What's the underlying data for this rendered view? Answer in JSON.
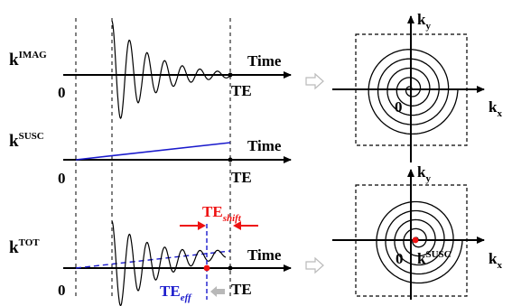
{
  "panel_imag": {
    "k_base": "k",
    "k_sup": "IMAG",
    "time_label": "Time",
    "zero_label": "0",
    "te_label": "TE"
  },
  "panel_susc": {
    "k_base": "k",
    "k_sup": "SUSC",
    "time_label": "Time",
    "zero_label": "0",
    "te_label": "TE"
  },
  "panel_tot": {
    "k_base": "k",
    "k_sup": "TOT",
    "time_label": "Time",
    "zero_label": "0",
    "te_label": "TE",
    "te_shift_base": "TE",
    "te_shift_sub": "shift",
    "te_eff_base": "TE",
    "te_eff_sub": "eff"
  },
  "kspace_top": {
    "ky_base": "k",
    "ky_sub": "y",
    "kx_base": "k",
    "kx_sub": "x",
    "zero_label": "0"
  },
  "kspace_bottom": {
    "ky_base": "k",
    "ky_sub": "y",
    "kx_base": "k",
    "kx_sub": "x",
    "zero_label": "0",
    "ksusc_base": "k",
    "ksusc_sup": "SUSC"
  },
  "colors": {
    "text": "#000000",
    "signal": "#000000",
    "susc_line": "#1a1acc",
    "shift_red": "#ee1111",
    "eff_blue": "#1a1acc",
    "arrow_gray": "#b8b8b8",
    "marker_red": "#ee1111"
  }
}
